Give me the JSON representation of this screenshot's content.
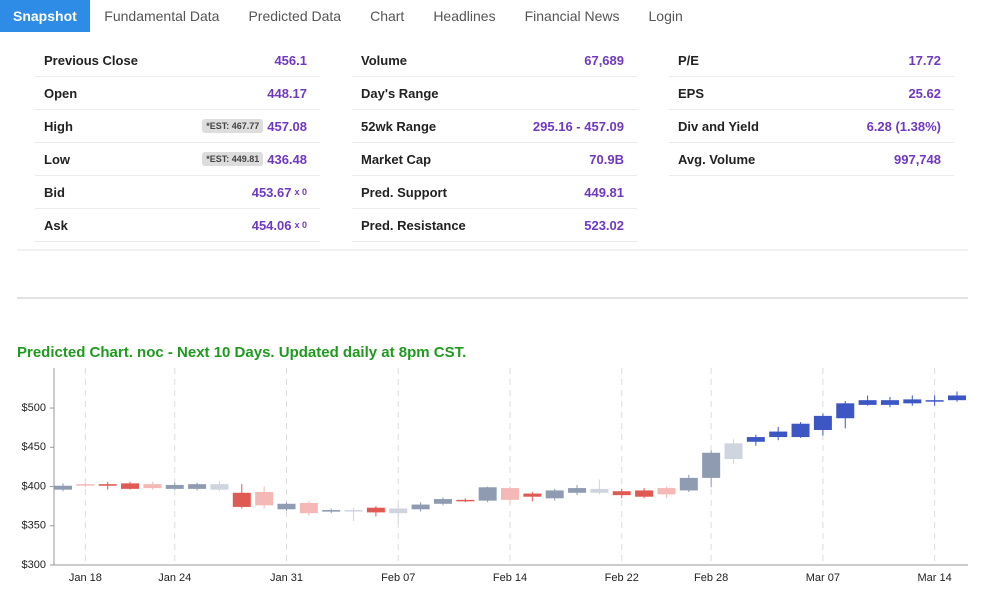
{
  "nav": [
    "Snapshot",
    "Fundamental Data",
    "Predicted Data",
    "Chart",
    "Headlines",
    "Financial News",
    "Login"
  ],
  "active_tab": 0,
  "stats": [
    {
      "rows": [
        {
          "label": "Previous Close",
          "value": "456.1"
        },
        {
          "label": "Open",
          "value": "448.17"
        },
        {
          "label": "High",
          "value": "457.08",
          "est": "*EST: 467.77"
        },
        {
          "label": "Low",
          "value": "436.48",
          "est": "*EST: 449.81"
        },
        {
          "label": "Bid",
          "value": "453.67",
          "suffix": "x 0"
        },
        {
          "label": "Ask",
          "value": "454.06",
          "suffix": "x 0"
        }
      ]
    },
    {
      "rows": [
        {
          "label": "Volume",
          "value": "67,689"
        },
        {
          "label": "Day's Range",
          "value": ""
        },
        {
          "label": "52wk Range",
          "value": "295.16 - 457.09"
        },
        {
          "label": "Market Cap",
          "value": "70.9B"
        },
        {
          "label": "Pred. Support",
          "value": "449.81"
        },
        {
          "label": "Pred. Resistance",
          "value": "523.02"
        }
      ]
    },
    {
      "rows": [
        {
          "label": "P/E",
          "value": "17.72"
        },
        {
          "label": "EPS",
          "value": "25.62"
        },
        {
          "label": "Div and Yield",
          "value": "6.28 (1.38%)"
        },
        {
          "label": "Avg. Volume",
          "value": "997,748"
        }
      ]
    }
  ],
  "chart_data": {
    "type": "candlestick",
    "title": "Predicted Chart. noc - Next 10 Days. Updated daily at 8pm CST.",
    "categories": [
      null,
      "Jan 18",
      null,
      null,
      null,
      "Jan 24",
      null,
      null,
      null,
      null,
      "Jan 31",
      null,
      null,
      null,
      null,
      "Feb 07",
      null,
      null,
      null,
      null,
      "Feb 14",
      null,
      null,
      null,
      null,
      "Feb 22",
      null,
      null,
      null,
      "Feb 28",
      null,
      null,
      null,
      null,
      "Mar 07",
      null,
      null,
      null,
      null,
      "Mar 14",
      null
    ],
    "open": [
      396,
      402,
      403,
      404,
      403,
      397,
      397,
      396,
      392,
      393,
      371,
      379,
      368,
      369,
      373,
      366,
      371,
      378,
      383,
      382,
      398,
      391,
      385,
      392,
      397,
      394,
      395,
      398,
      395,
      411,
      435,
      457,
      463,
      463,
      472,
      487,
      504,
      504,
      506,
      510,
      510
    ],
    "high": [
      404,
      404,
      406,
      406,
      406,
      405,
      405,
      407,
      403,
      400,
      380,
      381,
      372,
      373,
      375,
      376,
      380,
      386,
      385,
      400,
      400,
      393,
      397,
      402,
      409,
      397,
      398,
      400,
      415,
      446,
      460,
      466,
      476,
      482,
      493,
      509,
      516,
      514,
      516,
      516,
      521
    ],
    "low": [
      394,
      399,
      396,
      396,
      396,
      396,
      395,
      394,
      372,
      372,
      369,
      363,
      366,
      356,
      362,
      352,
      368,
      376,
      380,
      380,
      378,
      381,
      382,
      389,
      390,
      385,
      385,
      385,
      393,
      399,
      429,
      452,
      459,
      462,
      465,
      474,
      503,
      501,
      503,
      503,
      508
    ],
    "close": [
      401,
      403,
      401,
      397,
      398,
      402,
      403,
      403,
      374,
      376,
      378,
      366,
      370,
      370,
      367,
      372,
      377,
      384,
      382,
      399,
      383,
      387,
      395,
      398,
      392,
      389,
      387,
      390,
      411,
      443,
      455,
      463,
      470,
      480,
      490,
      506,
      510,
      510,
      511,
      510,
      516
    ],
    "colors": [
      "#8e9bb0",
      "#f4b9b6",
      "#e05a54",
      "#e05a54",
      "#f4b9b6",
      "#8e9bb0",
      "#8e9bb0",
      "#cfd5df",
      "#e05a54",
      "#f4b9b6",
      "#8e9bb0",
      "#f4b9b6",
      "#8e9bb0",
      "#cfd5df",
      "#e05a54",
      "#cfd5df",
      "#8e9bb0",
      "#8e9bb0",
      "#e05a54",
      "#8e9bb0",
      "#f4b9b6",
      "#e05a54",
      "#8e9bb0",
      "#8e9bb0",
      "#cfd5df",
      "#e05a54",
      "#e05a54",
      "#f4b9b6",
      "#8e9bb0",
      "#8e9bb0",
      "#cfd5df",
      "#3c56c4",
      "#3c56c4",
      "#3c56c4",
      "#3c56c4",
      "#3c56c4",
      "#3c56c4",
      "#3c56c4",
      "#3c56c4",
      "#3c56c4",
      "#3c56c4"
    ],
    "ylim": [
      300,
      551
    ],
    "yticks": [
      {
        "value": 300,
        "label": "$300"
      },
      {
        "value": 350,
        "label": "$350"
      },
      {
        "value": 400,
        "label": "$400"
      },
      {
        "value": 450,
        "label": "$450"
      },
      {
        "value": 500,
        "label": "$500"
      }
    ],
    "grid": true
  }
}
